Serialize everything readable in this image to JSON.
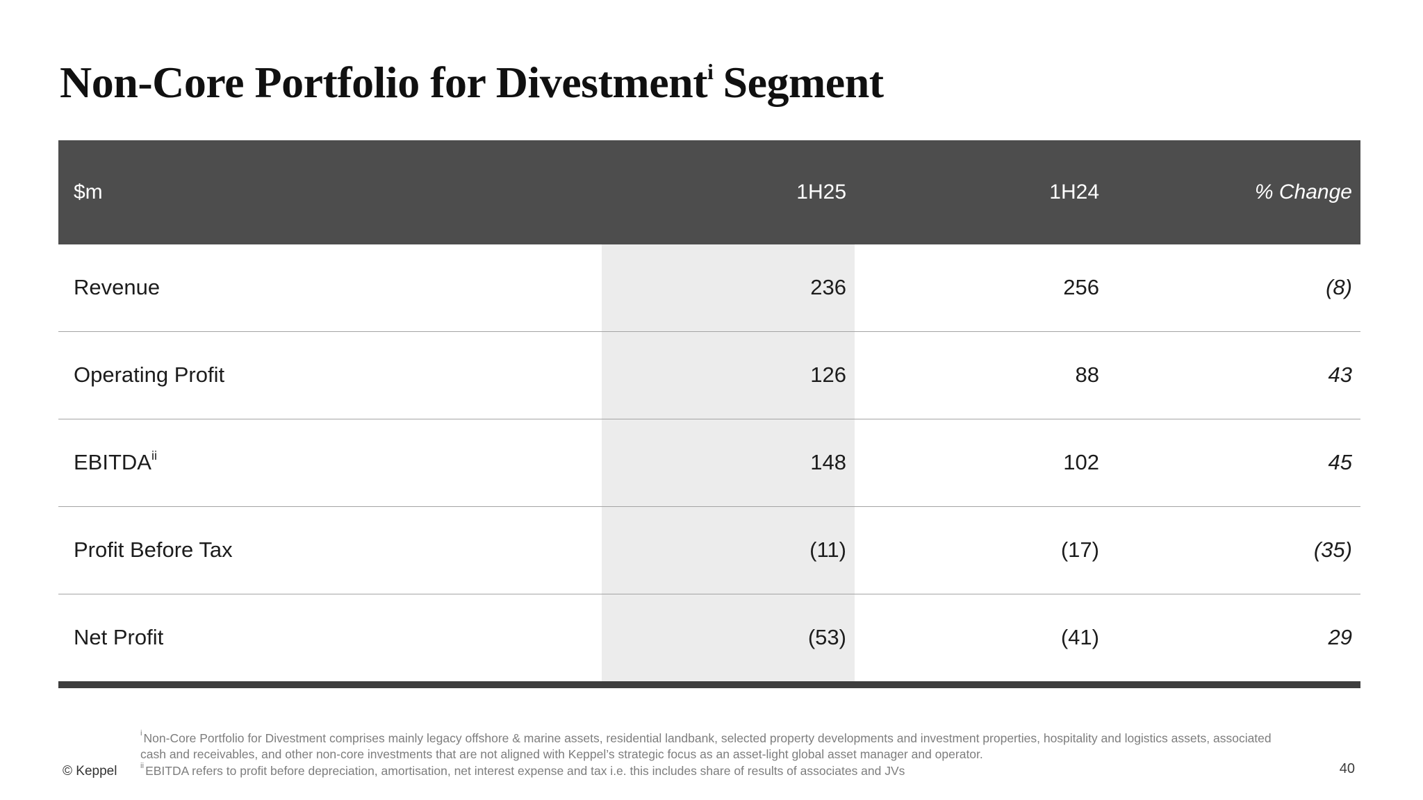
{
  "title": {
    "prefix": "Non-Core Portfolio for Divestment",
    "superscript": "i",
    "suffix": "Segment"
  },
  "table": {
    "unit_label": "$m",
    "columns": [
      "1H25",
      "1H24",
      "% Change"
    ],
    "highlight_column": "1H25",
    "rows": [
      {
        "label": "Revenue",
        "label_sup": "",
        "h25": "236",
        "h24": "256",
        "change": "(8)"
      },
      {
        "label": "Operating Profit",
        "label_sup": "",
        "h25": "126",
        "h24": "88",
        "change": "43"
      },
      {
        "label": "EBITDA",
        "label_sup": "ii",
        "h25": "148",
        "h24": "102",
        "change": "45"
      },
      {
        "label": "Profit Before Tax",
        "label_sup": "",
        "h25": "(11)",
        "h24": "(17)",
        "change": "(35)"
      },
      {
        "label": "Net Profit",
        "label_sup": "",
        "h25": "(53)",
        "h24": "(41)",
        "change": "29"
      }
    ]
  },
  "footnotes": [
    {
      "sup": "i",
      "text": "Non-Core Portfolio for Divestment comprises mainly legacy offshore & marine assets, residential landbank, selected property developments and investment properties, hospitality and logistics assets, associated cash and receivables, and other non-core investments that are not aligned with Keppel’s strategic focus as an asset-light global asset manager and operator."
    },
    {
      "sup": "ii",
      "text": "EBITDA refers to profit before depreciation, amortisation, net interest expense and tax i.e. this includes share of results of associates and JVs"
    }
  ],
  "footer": {
    "copyright": "© Keppel",
    "page_number": "40"
  },
  "colors": {
    "header_bg": "#4d4d4d",
    "header_text": "#ffffff",
    "highlight_column_bg": "#ececec",
    "row_divider": "#a3a3a3",
    "table_bottom_bar": "#3d3d3d",
    "footnote_text": "#7d7d7d",
    "body_text": "#1c1c1c",
    "title_text": "#101010"
  }
}
